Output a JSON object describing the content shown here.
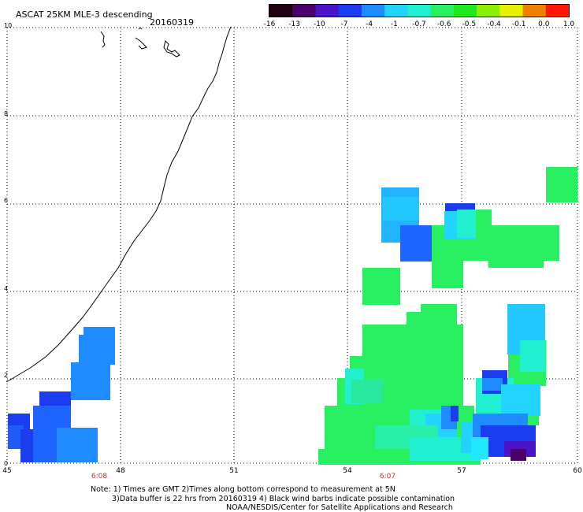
{
  "header": {
    "title": "ASCAT 25KM MLE-3 descending",
    "date": "20160319"
  },
  "colorbar": {
    "labels": [
      "-16",
      "-13",
      "-10",
      "-7",
      "-4",
      "-1",
      "-0.7",
      "-0.6",
      "-0.5",
      "-0.4",
      "-0.1",
      "0.0",
      "1.0"
    ],
    "colors": [
      "#200010",
      "#4a006a",
      "#4a14c8",
      "#1c3cf0",
      "#1e8cff",
      "#22d2ff",
      "#20f0d0",
      "#28f060",
      "#1ee81e",
      "#8cf000",
      "#e6f000",
      "#f08000",
      "#ff1800"
    ]
  },
  "axes": {
    "x_ticks": [
      "45",
      "48",
      "51",
      "54",
      "57",
      "60"
    ],
    "y_ticks": [
      "0",
      "2",
      "4",
      "6",
      "8",
      "10"
    ],
    "time_labels": [
      "6:08",
      "6:07"
    ]
  },
  "footer": {
    "note_line1": "Note: 1) Times are GMT 2)Times along bottom correspond to measurement at 5N",
    "note_line2": "3)Data buffer is 22 hrs from 20160319 4) Black wind barbs indicate possible contamination",
    "credit": "NOAA/NESDIS/Center for Satellite Applications and Research"
  }
}
